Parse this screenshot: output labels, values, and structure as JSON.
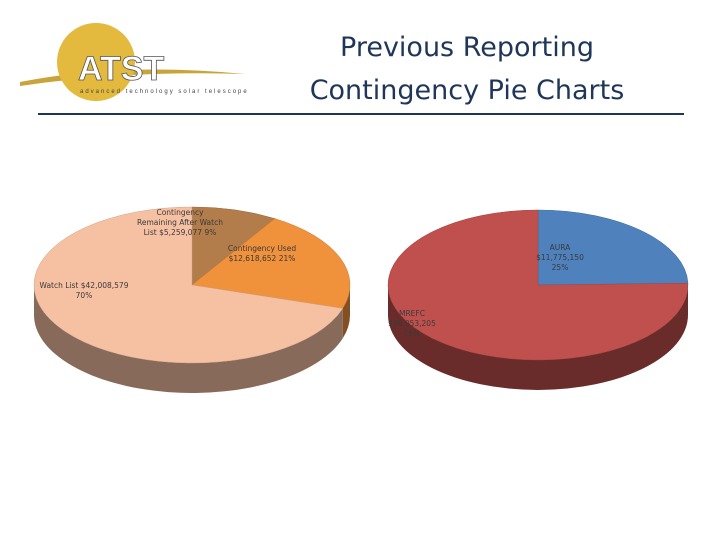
{
  "header": {
    "title_lines": [
      "Previous Reporting",
      "Contingency Pie Charts"
    ],
    "logo": "ATST",
    "logo_subtitle": "advanced technology solar telescope"
  },
  "chart_data": [
    {
      "type": "pie",
      "categories": [
        "Contingency Remaining After Watch List",
        "Contingency Used",
        "Watch List"
      ],
      "values": [
        5259077,
        12618652,
        42008579
      ],
      "value_labels": [
        "$5,259,077",
        "$12,618,652",
        "$42,008,579"
      ],
      "percent_labels": [
        "9%",
        "21%",
        "70%"
      ],
      "colors": [
        "#b27d4a",
        "#f0913c",
        "#f6c1a3"
      ]
    },
    {
      "type": "pie",
      "categories": [
        "AURA",
        "MREFC"
      ],
      "values": [
        11775150,
        36053205
      ],
      "value_labels": [
        "$11,775,150",
        "$36,053,205"
      ],
      "percent_labels": [
        "25%",
        "75%"
      ],
      "colors": [
        "#4f81bd",
        "#c0504d"
      ]
    }
  ]
}
